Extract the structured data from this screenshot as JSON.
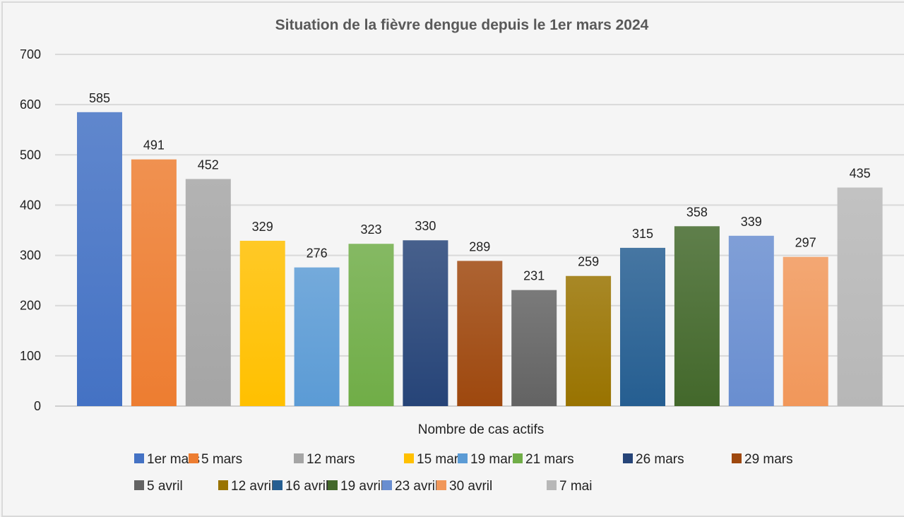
{
  "chart_data": {
    "type": "bar",
    "title": "Situation de la fièvre dengue depuis le 1er mars 2024",
    "xlabel": "Nombre de cas actifs",
    "ylabel": "",
    "ylim": [
      0,
      700
    ],
    "yticks": [
      0,
      100,
      200,
      300,
      400,
      500,
      600,
      700
    ],
    "ytick_labels": [
      "0",
      "100",
      "200",
      "300",
      "400",
      "500",
      "600",
      "700"
    ],
    "grid": true,
    "legend_position": "bottom",
    "categories": [
      "1er mars",
      "5 mars",
      "12 mars",
      "15 mars",
      "19 mars",
      "21 mars",
      "26 mars",
      "29 mars",
      "5 avril",
      "12 avril",
      "16 avril",
      "19 avril",
      "23 avril",
      "30 avril",
      "7 mai"
    ],
    "values": [
      585,
      491,
      452,
      329,
      276,
      323,
      330,
      289,
      231,
      259,
      315,
      358,
      339,
      297,
      435
    ],
    "data_labels": [
      "585",
      "491",
      "452",
      "329",
      "276",
      "323",
      "330",
      "289",
      "231",
      "259",
      "315",
      "358",
      "339",
      "297",
      "435"
    ],
    "colors": [
      "#4472c4",
      "#ed7d31",
      "#a5a5a5",
      "#ffc000",
      "#5b9bd5",
      "#70ad47",
      "#264478",
      "#9e480e",
      "#636363",
      "#997300",
      "#255e91",
      "#43682b",
      "#698ed0",
      "#f1975a",
      "#b7b7b7"
    ],
    "legend": [
      [
        "1er mars",
        "5 mars",
        "12 mars",
        "15 mars",
        "19 mars",
        "21 mars",
        "26 mars",
        "29 mars"
      ],
      [
        "5 avril",
        "12 avril",
        "16 avril",
        "19 avril",
        "23 avril",
        "30 avril",
        "7 mai"
      ]
    ]
  }
}
